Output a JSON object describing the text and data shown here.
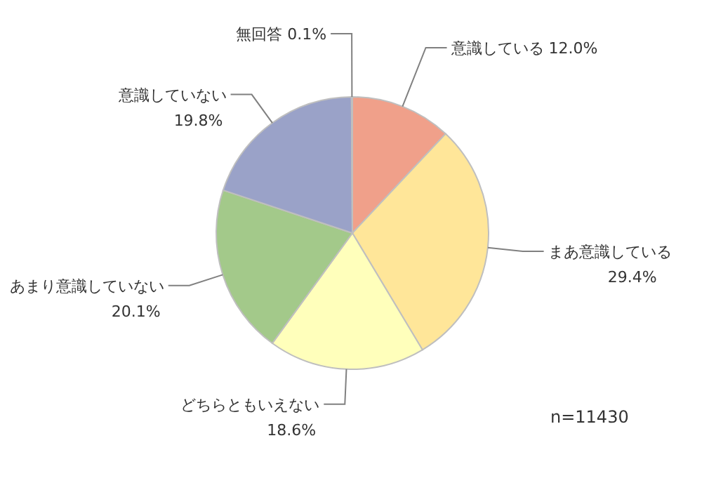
{
  "chart_data": {
    "type": "pie",
    "categories": [
      "意識している",
      "まあ意識している",
      "どちらともいえない",
      "あまり意識していない",
      "意識していない",
      "無回答"
    ],
    "values": [
      12.0,
      29.4,
      18.6,
      20.1,
      19.8,
      0.1
    ],
    "value_labels": [
      "12.0%",
      "29.4%",
      "18.6%",
      "20.1%",
      "19.8%",
      "0.1%"
    ],
    "colors": [
      "#f0a08a",
      "#ffe699",
      "#ffffbb",
      "#a3c98a",
      "#9aa2c8",
      "#d9d9d9"
    ],
    "annotations": [
      "n=11430"
    ],
    "legend": false
  }
}
